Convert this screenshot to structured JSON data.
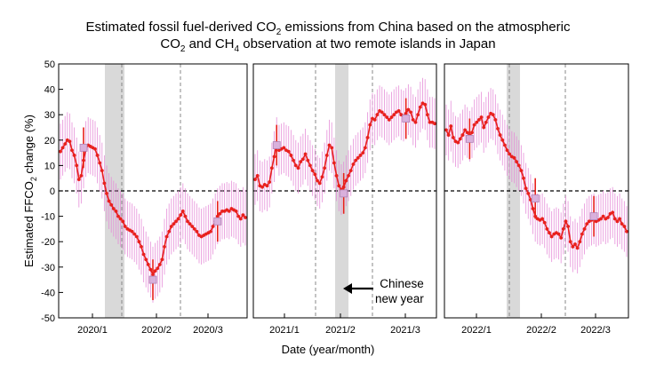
{
  "title": {
    "line1_pre": "Estimated fossil fuel-derived CO",
    "line1_sub": "2",
    "line1_post": " emissions from China based on the atmospheric",
    "line2_a": "CO",
    "line2_a_sub": "2",
    "line2_b": " and CH",
    "line2_b_sub": "4",
    "line2_c": " observation at two remote islands in Japan"
  },
  "ylabel": {
    "pre": "Estimated FFCO",
    "sub": "2",
    "post": " change (%)"
  },
  "xlabel": "Date (year/month)",
  "annotation": {
    "line1": "Chinese",
    "line2": "new year"
  },
  "colors": {
    "series": "#e8201d",
    "error_band": "#e58ad8",
    "marker_square": "#d9b0dc",
    "shade": "#d9d9d9",
    "zero_line": "#000000"
  },
  "chart_data": {
    "type": "line",
    "ylim": [
      -50,
      50
    ],
    "yticks": [
      -50,
      -40,
      -30,
      -20,
      -10,
      0,
      10,
      20,
      30,
      40,
      50
    ],
    "reference_line": 0,
    "panels": [
      {
        "xticks": [
          "2020/1",
          "2020/2",
          "2020/3"
        ],
        "shade": [
          "2020/1.0",
          "2020/1.7"
        ],
        "dashed_lines": [
          "2020/1.55",
          "2020/2.45"
        ],
        "values": [
          15.5,
          17,
          18.5,
          20,
          19.5,
          16,
          14,
          10,
          4.5,
          6,
          12,
          16.5,
          18,
          17.5,
          17,
          16.5,
          14,
          11,
          8,
          3,
          -1,
          -4,
          -5.5,
          -7,
          -8,
          -10,
          -11,
          -12,
          -14,
          -15,
          -15.5,
          -16,
          -17,
          -18,
          -20,
          -22,
          -25,
          -27,
          -29,
          -31,
          -33,
          -31.5,
          -30.5,
          -29,
          -27,
          -22,
          -18,
          -16,
          -14,
          -13,
          -12,
          -11,
          -9.5,
          -8,
          -10,
          -12,
          -13,
          -14,
          -15,
          -16,
          -17.5,
          -18,
          -17.5,
          -17,
          -16.5,
          -16,
          -14,
          -12,
          -10,
          -9,
          -8,
          -8,
          -7.5,
          -8,
          -7,
          -7.5,
          -8,
          -10,
          -11,
          -9.5,
          -10.5
        ],
        "band": 11,
        "squares": [
          {
            "i": 10,
            "v": 17
          },
          {
            "i": 40,
            "v": -35
          },
          {
            "i": 68,
            "v": -12
          }
        ]
      },
      {
        "xticks": [
          "2021/1",
          "2021/2",
          "2021/3"
        ],
        "shade": [
          "2021/2.7",
          "2021/2.0"
        ],
        "dashed_lines": [
          "2021/1.45",
          "2021/2.95"
        ],
        "values": [
          4.5,
          6,
          2,
          1.5,
          2.5,
          2,
          3.5,
          9,
          13.5,
          19,
          16,
          16.5,
          17,
          16,
          15.5,
          14,
          12,
          10,
          9,
          11.5,
          12.5,
          14.5,
          12,
          10,
          8,
          6.5,
          4,
          3,
          5.5,
          9,
          14,
          18,
          17,
          11,
          6,
          2,
          0.5,
          1.5,
          4,
          6,
          8,
          10.5,
          12,
          13,
          14,
          15,
          17,
          21,
          26,
          28.5,
          28,
          30,
          31.5,
          31,
          30,
          29,
          28,
          29,
          30,
          31,
          31.5,
          30,
          29.5,
          30.5,
          32,
          31,
          28,
          27,
          30,
          33,
          34.5,
          34,
          30,
          27,
          27,
          26.5
        ],
        "band": 10,
        "squares": [
          {
            "i": 9,
            "v": 18
          },
          {
            "i": 37,
            "v": -1
          },
          {
            "i": 63,
            "v": 28.5
          }
        ]
      },
      {
        "xticks": [
          "2022/1",
          "2022/2",
          "2022/3"
        ],
        "shade": [
          "2022/1.6",
          "2022/1.2"
        ],
        "dashed_lines": [
          "2022/1.5",
          "2022/2.1"
        ],
        "values": [
          24,
          22,
          25.5,
          21,
          19.5,
          19,
          20.5,
          22,
          24,
          23,
          21.5,
          23,
          26,
          27,
          28,
          29,
          25,
          27,
          29,
          30.5,
          30,
          28,
          24.5,
          22,
          20,
          18,
          16,
          14.5,
          13.5,
          13,
          11.5,
          10,
          8,
          5,
          1,
          -1,
          -3.5,
          -7,
          -10,
          -11,
          -11.5,
          -11,
          -12.5,
          -15,
          -16.5,
          -18,
          -17,
          -16.5,
          -17,
          -18.5,
          -15,
          -12,
          -14,
          -20,
          -22,
          -21,
          -22.5,
          -20,
          -17,
          -15,
          -13,
          -12,
          -11.5,
          -11,
          -12,
          -11.5,
          -11,
          -10,
          -11,
          -10.5,
          -9,
          -8.5,
          -11,
          -12,
          -11,
          -13,
          -14,
          -16
        ],
        "band": 10,
        "squares": [
          {
            "i": 10,
            "v": 20.5
          },
          {
            "i": 38,
            "v": -3
          },
          {
            "i": 63,
            "v": -10
          }
        ]
      }
    ]
  }
}
